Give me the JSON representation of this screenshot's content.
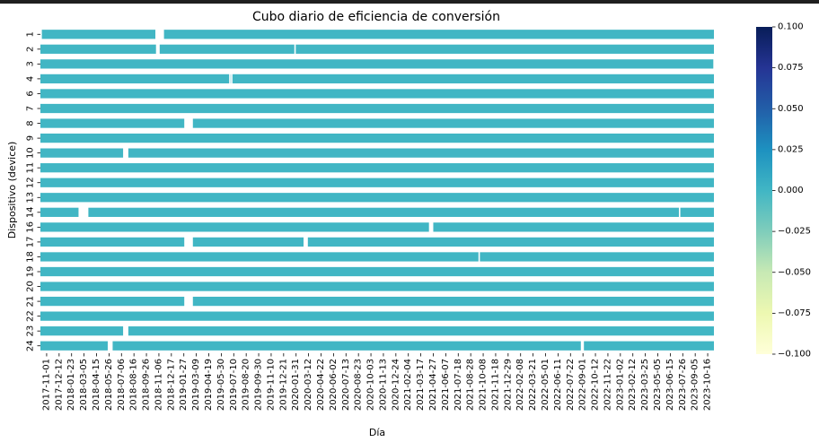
{
  "chart_data": {
    "type": "heatmap",
    "title": "Cubo diario de eficiencia de conversión",
    "xlabel": "Día",
    "ylabel": "Dispositivo (device)",
    "rows": [
      "1",
      "2",
      "3",
      "4",
      "6",
      "7",
      "8",
      "9",
      "10",
      "11",
      "12",
      "13",
      "14",
      "16",
      "17",
      "18",
      "19",
      "20",
      "21",
      "22",
      "23",
      "24"
    ],
    "x_tick_labels": [
      "2017-11-01",
      "2017-12-12",
      "2018-01-23",
      "2018-03-05",
      "2018-04-15",
      "2018-05-26",
      "2018-07-06",
      "2018-08-16",
      "2018-09-26",
      "2018-11-06",
      "2018-12-17",
      "2019-01-27",
      "2019-03-09",
      "2019-04-19",
      "2019-05-30",
      "2019-07-10",
      "2019-08-20",
      "2019-09-30",
      "2019-11-10",
      "2019-12-21",
      "2020-01-31",
      "2020-03-12",
      "2020-04-22",
      "2020-06-02",
      "2020-07-13",
      "2020-08-23",
      "2020-10-03",
      "2020-11-13",
      "2020-12-24",
      "2021-02-04",
      "2021-03-17",
      "2021-04-27",
      "2021-06-07",
      "2021-07-18",
      "2021-08-28",
      "2021-10-08",
      "2021-11-18",
      "2021-12-29",
      "2022-02-08",
      "2022-03-21",
      "2022-05-01",
      "2022-06-11",
      "2022-07-22",
      "2022-09-01",
      "2022-10-12",
      "2022-11-22",
      "2023-01-02",
      "2023-02-12",
      "2023-03-25",
      "2023-05-05",
      "2023-06-15",
      "2023-07-26",
      "2023-09-05",
      "2023-10-16"
    ],
    "x_tick_labels_shown": [
      "2017-11-01",
      "2017-12-12",
      "2018-01-23",
      "2018-03-05",
      "2018-04-15",
      "2018-05-26",
      "2018-07-06",
      "2018-08-16",
      "2018-09-26",
      "2018-11-06",
      "2018-12-17",
      "2019-01-27",
      "2019-03-09",
      "2019-04-19",
      "2019-05-30",
      "2019-07-10",
      "2019-08-20",
      "2019-09-30",
      "2019-11-10",
      "2019-12-21",
      "2020-01-31",
      "2020-03-12",
      "2020-04-22",
      "2020-06-02",
      "2020-07-13",
      "2020-08-23",
      "2020-10-03",
      "2020-11-13",
      "2020-12-24",
      "2021-02-04",
      "2021-03-17",
      "2021-04-27",
      "2021-06-07",
      "2021-07-18",
      "2021-08-28",
      "2021-10-08",
      "2021-11-18",
      "2021-12-29",
      "2022-02-08",
      "2022-03-21",
      "2022-05-01",
      "2022-06-11",
      "2022-07-22",
      "2022-09-01",
      "2022-10-12",
      "2022-11-22",
      "2023-01-02",
      "2023-02-12",
      "2023-03-25",
      "2023-05-05",
      "2023-06-15",
      "2023-07-26",
      "2023-09-05",
      "2023-10-16"
    ],
    "x_range": [
      "2017-11-01",
      "2023-10-31"
    ],
    "cell_value": 0.0,
    "value_range": [
      -0.1,
      0.1
    ],
    "colormap": "YlGnBu",
    "colorbar_ticks": [
      "0.100",
      "0.075",
      "0.050",
      "0.025",
      "0.000",
      "−0.025",
      "−0.050",
      "−0.075",
      "−0.100"
    ],
    "colorbar_values": [
      0.1,
      0.075,
      0.05,
      0.025,
      0.0,
      -0.025,
      -0.05,
      -0.075,
      -0.1
    ],
    "colorbar_colors": [
      "#081d58",
      "#253494",
      "#225ea8",
      "#1d91c0",
      "#41b6c4",
      "#7fcdbb",
      "#c7e9b4",
      "#edf8b1",
      "#ffffd9"
    ],
    "cell_color": "#41b6c4",
    "missing_color": "#ffffff",
    "missing_cells": [
      {
        "row": "1",
        "start": "2017-11-01",
        "end": "2017-11-02"
      },
      {
        "row": "1",
        "start": "2018-11-10",
        "end": "2018-12-08"
      },
      {
        "row": "2",
        "start": "2018-11-12",
        "end": "2018-11-24"
      },
      {
        "row": "2",
        "start": "2020-02-05",
        "end": "2020-02-06"
      },
      {
        "row": "3",
        "start": "2023-10-30",
        "end": "2023-10-31"
      },
      {
        "row": "4",
        "start": "2019-07-08",
        "end": "2019-07-10"
      },
      {
        "row": "4",
        "start": "2019-07-14",
        "end": "2019-07-16"
      },
      {
        "row": "8",
        "start": "2019-02-12",
        "end": "2019-03-12"
      },
      {
        "row": "10",
        "start": "2018-07-28",
        "end": "2018-08-14"
      },
      {
        "row": "14",
        "start": "2018-03-05",
        "end": "2018-04-06"
      },
      {
        "row": "14",
        "start": "2023-07-10",
        "end": "2023-07-11"
      },
      {
        "row": "16",
        "start": "2021-04-18",
        "end": "2021-05-02"
      },
      {
        "row": "17",
        "start": "2019-02-12",
        "end": "2019-03-12"
      },
      {
        "row": "17",
        "start": "2020-03-06",
        "end": "2020-03-20"
      },
      {
        "row": "18",
        "start": "2021-09-26",
        "end": "2021-09-27"
      },
      {
        "row": "21",
        "start": "2019-02-12",
        "end": "2019-03-12"
      },
      {
        "row": "23",
        "start": "2018-07-28",
        "end": "2018-08-14"
      },
      {
        "row": "24",
        "start": "2018-06-08",
        "end": "2018-06-24"
      },
      {
        "row": "24",
        "start": "2022-08-25",
        "end": "2022-09-04"
      }
    ]
  }
}
